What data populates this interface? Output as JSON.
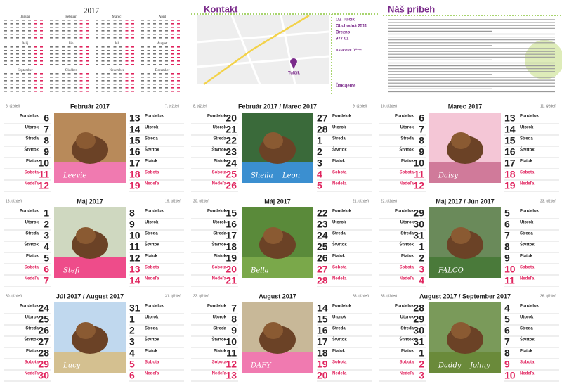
{
  "year": "2017",
  "months": [
    "Január",
    "Február",
    "Marec",
    "Apríl",
    "Máj",
    "Jún",
    "Júl",
    "August",
    "September",
    "Október",
    "November",
    "December"
  ],
  "contact": {
    "title": "Kontakt",
    "org": "OZ Tulčík",
    "street": "Obchodná 2511",
    "city": "Brezno",
    "zip": "977 01",
    "bank": "BANKOVÉ ÚČTY:",
    "map_label": "Tulčík",
    "thanks": "Ďakujeme"
  },
  "story": {
    "title": "Náš príbeh"
  },
  "weekdays": [
    "Pondelok",
    "Utorok",
    "Streda",
    "Štvrtok",
    "Piatok",
    "Sobota",
    "Nedeľa"
  ],
  "panels": [
    {
      "week_left": "6. týždeň",
      "week_right": "7. týždeň",
      "title": "Február 2017",
      "captions": [
        "Leevie"
      ],
      "left": [
        6,
        7,
        8,
        9,
        10,
        11,
        12
      ],
      "right": [
        13,
        14,
        15,
        16,
        17,
        18,
        19
      ]
    },
    {
      "week_left": "8. týždeň",
      "week_right": "9. týždeň",
      "title": "Február 2017 / Marec 2017",
      "captions": [
        "Sheila",
        "Leon"
      ],
      "left": [
        20,
        21,
        22,
        23,
        24,
        25,
        26
      ],
      "right": [
        27,
        28,
        1,
        2,
        3,
        4,
        5
      ]
    },
    {
      "week_left": "10. týždeň",
      "week_right": "11. týždeň",
      "title": "Marec 2017",
      "captions": [
        "Daisy"
      ],
      "left": [
        6,
        7,
        8,
        9,
        10,
        11,
        12
      ],
      "right": [
        13,
        14,
        15,
        16,
        17,
        18,
        19
      ]
    },
    {
      "week_left": "18. týždeň",
      "week_right": "19. týždeň",
      "title": "Máj 2017",
      "captions": [
        "Stefi"
      ],
      "left": [
        1,
        2,
        3,
        4,
        5,
        6,
        7
      ],
      "right": [
        8,
        9,
        10,
        11,
        12,
        13,
        14
      ]
    },
    {
      "week_left": "20. týždeň",
      "week_right": "21. týždeň",
      "title": "Máj 2017",
      "captions": [
        "Bella"
      ],
      "left": [
        15,
        16,
        17,
        18,
        19,
        20,
        21
      ],
      "right": [
        22,
        23,
        24,
        25,
        26,
        27,
        28
      ]
    },
    {
      "week_left": "22. týždeň",
      "week_right": "23. týždeň",
      "title": "Máj 2017 / Jún 2017",
      "captions": [
        "FALCO"
      ],
      "left": [
        29,
        30,
        31,
        1,
        2,
        3,
        4
      ],
      "right": [
        5,
        6,
        7,
        8,
        9,
        10,
        11
      ]
    },
    {
      "week_left": "30. týždeň",
      "week_right": "31. týždeň",
      "title": "Júl 2017 / August 2017",
      "captions": [
        "Lucy"
      ],
      "left": [
        24,
        25,
        26,
        27,
        28,
        29,
        30
      ],
      "right": [
        31,
        1,
        2,
        3,
        4,
        5,
        6
      ]
    },
    {
      "week_left": "32. týždeň",
      "week_right": "33. týždeň",
      "title": "August 2017",
      "captions": [
        "DAFY"
      ],
      "left": [
        7,
        8,
        9,
        10,
        11,
        12,
        13
      ],
      "right": [
        14,
        15,
        16,
        17,
        18,
        19,
        20
      ]
    },
    {
      "week_left": "35. týždeň",
      "week_right": "36. týždeň",
      "title": "August 2017 / September 2017",
      "captions": [
        "Daddy",
        "Johny"
      ],
      "left": [
        28,
        29,
        30,
        31,
        1,
        2,
        3
      ],
      "right": [
        4,
        5,
        6,
        7,
        8,
        9,
        10
      ]
    }
  ]
}
